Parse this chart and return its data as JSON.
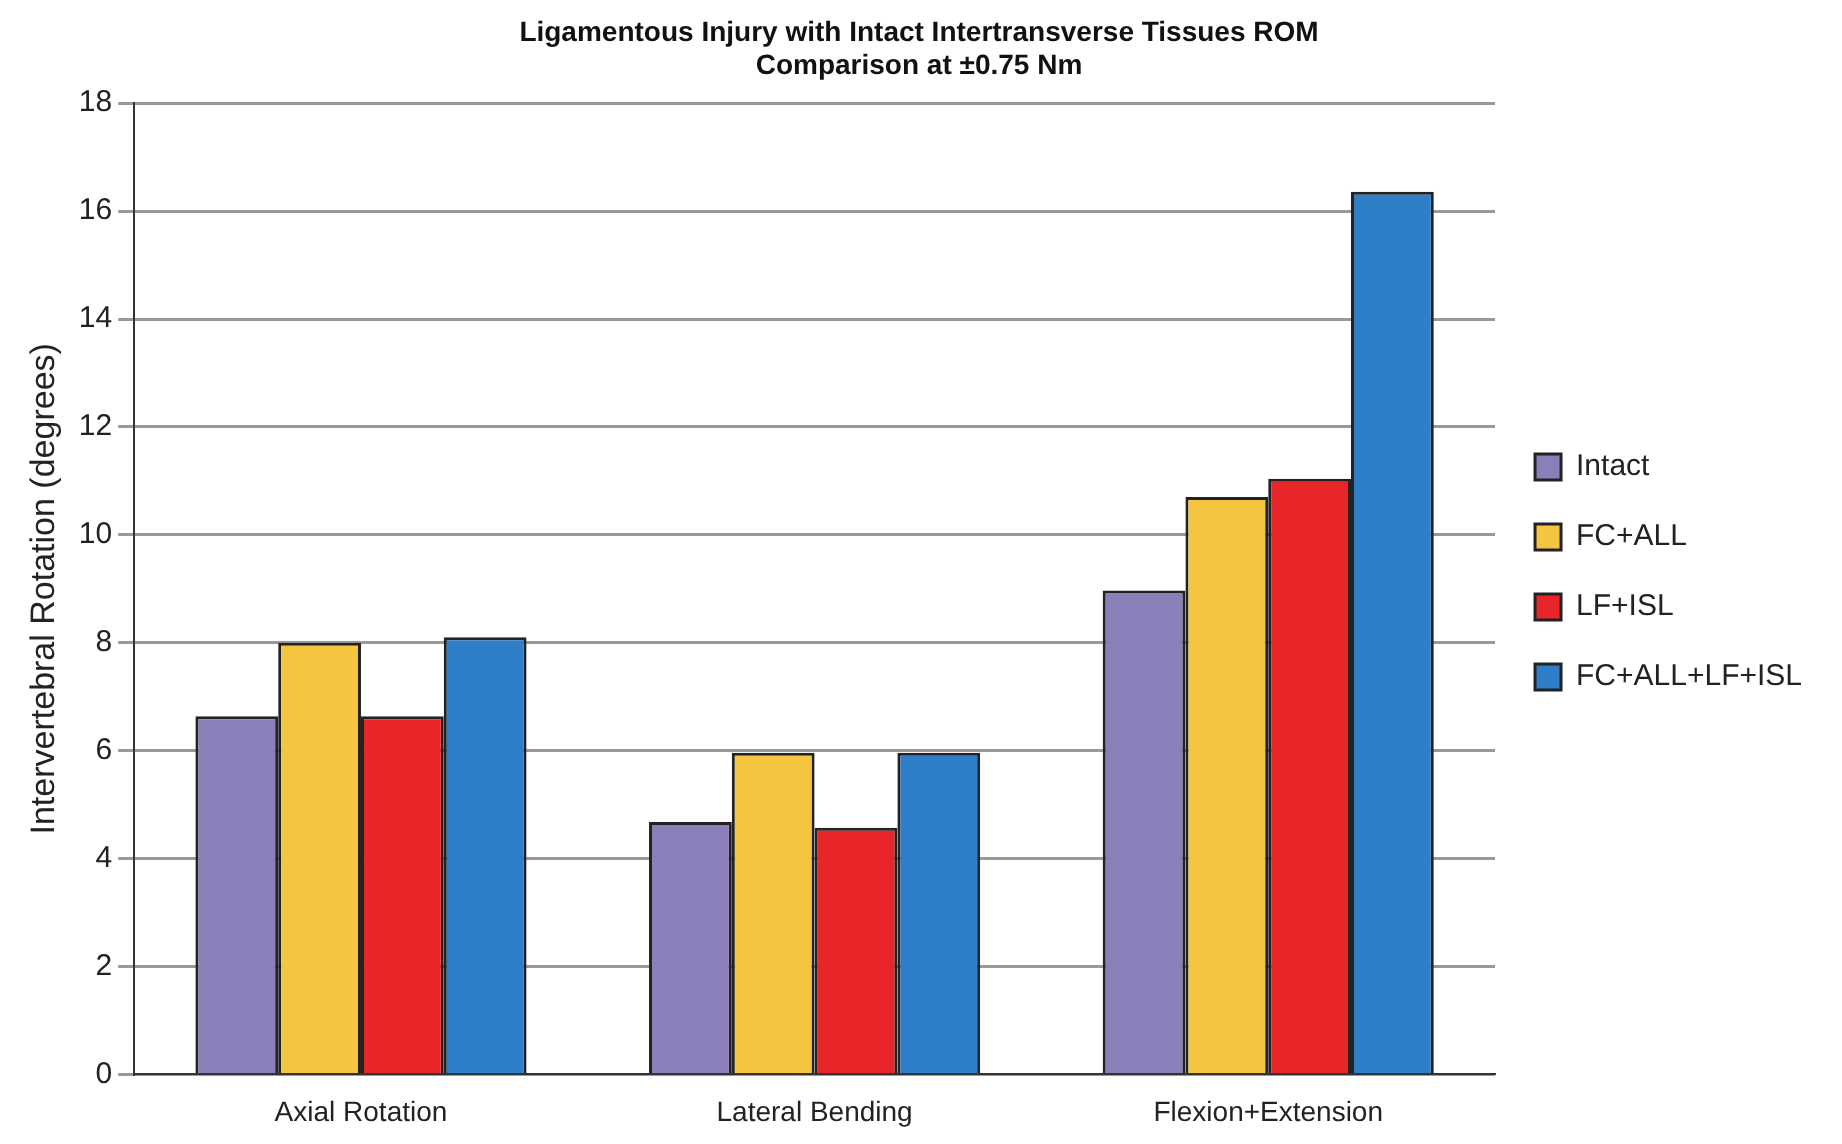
{
  "chart_data": {
    "type": "bar",
    "title": [
      "Ligamentous Injury with Intact Intertransverse Tissues ROM",
      "Comparison at ±0.75 Nm"
    ],
    "ylabel": "Intervertebral Rotation (degrees)",
    "categories": [
      "Axial Rotation",
      "Lateral Bending",
      "Flexion+Extension"
    ],
    "series": [
      {
        "name": "Intact",
        "color": "#8a7fb8",
        "values": [
          6.64,
          4.68,
          8.97
        ]
      },
      {
        "name": "FC+ALL",
        "color": "#f5c542",
        "values": [
          8.0,
          5.96,
          10.7
        ]
      },
      {
        "name": "LF+ISL",
        "color": "#e8262a",
        "values": [
          6.64,
          4.57,
          11.04
        ]
      },
      {
        "name": "FC+ALL+LF+ISL",
        "color": "#2f7fc8",
        "values": [
          8.1,
          5.96,
          16.36
        ]
      }
    ],
    "ylim": [
      0,
      18
    ],
    "yticks": [
      0,
      2,
      4,
      6,
      8,
      10,
      12,
      14,
      16,
      18
    ],
    "grid": "y",
    "legend": "right"
  }
}
